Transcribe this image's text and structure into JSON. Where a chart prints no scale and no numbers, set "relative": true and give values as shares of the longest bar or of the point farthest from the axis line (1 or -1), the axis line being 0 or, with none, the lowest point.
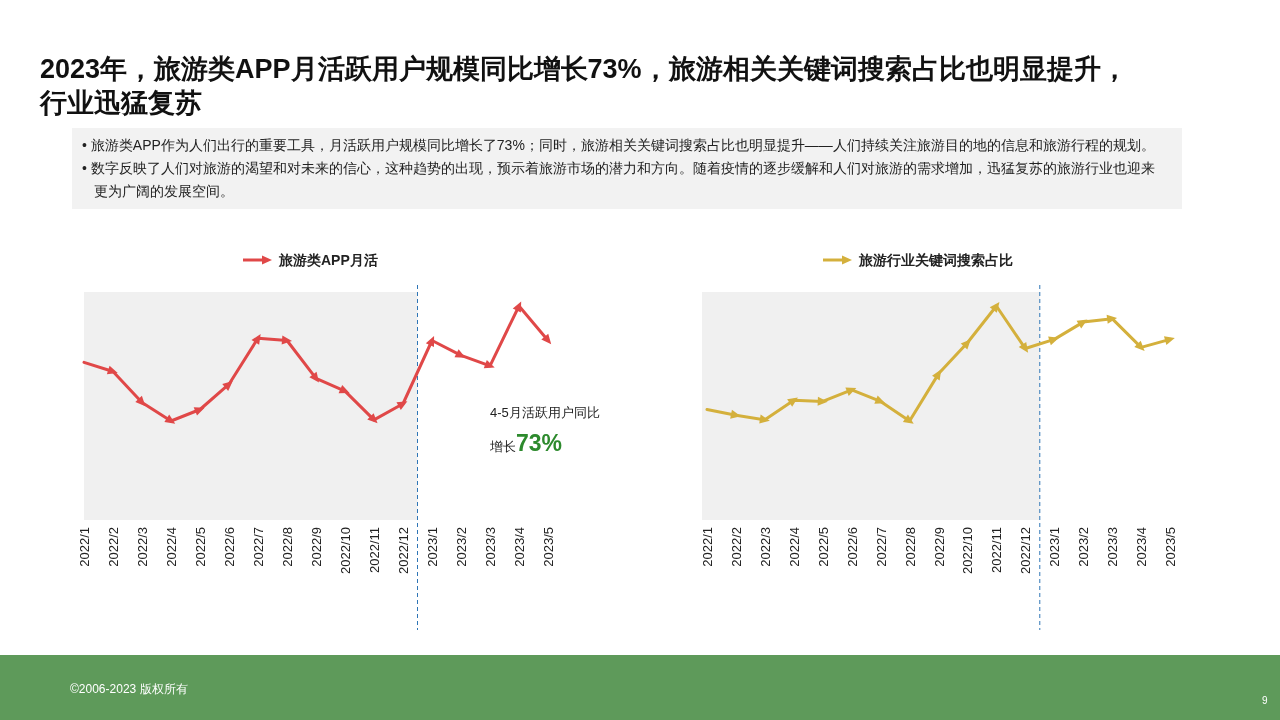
{
  "chart_data": [
    {
      "type": "line",
      "title": "2023年，旅游类APP月活跃用户规模同比增长73%，旅游相关关键词搜索占比也明显提升，行业迅猛复苏",
      "categories": [
        "2022/1",
        "2022/2",
        "2022/3",
        "2022/4",
        "2022/5",
        "2022/6",
        "2022/7",
        "2022/8",
        "2022/9",
        "2022/10",
        "2022/11",
        "2022/12",
        "2023/1",
        "2023/2",
        "2023/3",
        "2023/4",
        "2023/5"
      ],
      "relative": true,
      "series": [
        {
          "name": "旅游类APP月活",
          "color": "#e04848",
          "values": [
            0.51,
            0.43,
            0.16,
            0,
            0.1,
            0.32,
            0.72,
            0.7,
            0.37,
            0.26,
            0.01,
            0.15,
            0.7,
            0.57,
            0.48,
            1,
            0.7
          ]
        }
      ],
      "bands": [
        {
          "axis": "x",
          "from": "2022/1",
          "to": "2022/12",
          "color": "#f0f0f0"
        }
      ],
      "ref_lines": [
        {
          "axis": "x",
          "value": "2022/12",
          "color": "#2e75b6",
          "line_style": "dashed"
        }
      ],
      "legend": "top",
      "marker": "triangle",
      "line_style": "solid",
      "annotations": [
        "• 旅游类APP作为人们出行的重要工具，月活跃用户规模同比增长了73%；同时，旅游相关关键词搜索占比也明显提升——人们持续关注旅游目的地的信息和旅游行程的规划。",
        "• 数字反映了人们对旅游的渴望和对未来的信心，这种趋势的出现，预示着旅游市场的潜力和方向。随着疫情的逐步缓解和人们对旅游的需求增加，迅猛复苏的旅游行业也迎来更为广阔的发展空间。",
        "4-5月活跃用户同比增长73%",
        "©2006-2023 版权所有",
        "9"
      ]
    },
    {
      "type": "line",
      "categories": [
        "2022/1",
        "2022/2",
        "2022/3",
        "2022/4",
        "2022/5",
        "2022/6",
        "2022/7",
        "2022/8",
        "2022/9",
        "2022/10",
        "2022/11",
        "2022/12",
        "2023/1",
        "2023/2",
        "2023/3",
        "2023/4",
        "2023/5"
      ],
      "relative": true,
      "series": [
        {
          "name": "旅游行业关键词搜索占比",
          "color": "#d4b03c",
          "values": [
            0.1,
            0.05,
            0.01,
            0.18,
            0.17,
            0.27,
            0.17,
            0,
            0.41,
            0.68,
            1,
            0.63,
            0.71,
            0.86,
            0.89,
            0.64,
            0.71
          ]
        }
      ],
      "bands": [
        {
          "axis": "x",
          "from": "2022/1",
          "to": "2022/12",
          "color": "#f0f0f0"
        }
      ],
      "ref_lines": [
        {
          "axis": "x",
          "value": "2022/12",
          "color": "#2e75b6",
          "line_style": "dashed"
        }
      ],
      "legend": "top",
      "marker": "triangle",
      "line_style": "solid"
    }
  ]
}
